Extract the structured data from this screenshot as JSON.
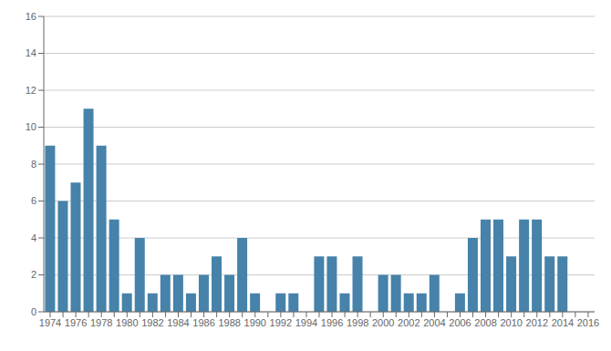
{
  "chart_data": {
    "type": "bar",
    "categories": [
      "1974",
      null,
      "1976",
      null,
      "1978",
      null,
      "1980",
      null,
      "1982",
      null,
      "1984",
      null,
      "1986",
      null,
      "1988",
      null,
      "1990",
      null,
      "1992",
      null,
      "1994",
      null,
      "1996",
      null,
      "1998",
      null,
      "2000",
      null,
      "2002",
      null,
      "2004",
      null,
      "2006",
      null,
      "2008",
      null,
      "2010",
      null,
      "2012",
      null,
      "2014",
      null,
      "2016"
    ],
    "values": [
      9,
      6,
      7,
      11,
      9,
      5,
      1,
      4,
      1,
      2,
      2,
      1,
      2,
      3,
      2,
      4,
      1,
      0,
      1,
      1,
      0,
      3,
      3,
      1,
      3,
      0,
      2,
      2,
      1,
      1,
      2,
      0,
      1,
      4,
      5,
      5,
      3,
      5,
      5,
      3,
      3,
      0,
      0
    ],
    "color": "#4682a9",
    "ylim": [
      0,
      16
    ],
    "yticks": [
      0,
      2,
      4,
      6,
      8,
      10,
      12,
      14,
      16
    ],
    "grid": true
  }
}
